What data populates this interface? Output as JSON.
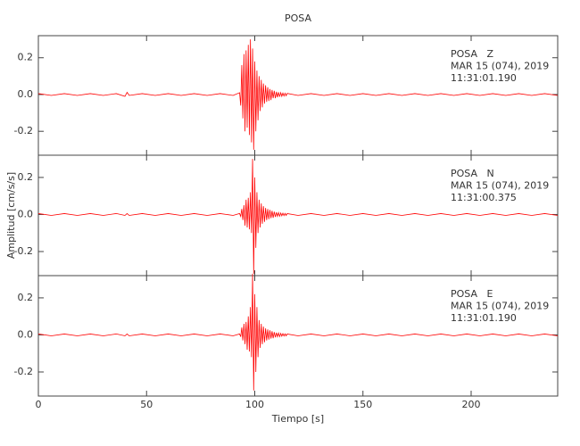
{
  "chart_data": [
    {
      "type": "line",
      "title": "POSA",
      "annotations": [
        "POSA   Z",
        "MAR 15 (074), 2019",
        "11:31:01.190"
      ],
      "xlim": [
        0,
        240
      ],
      "xticks": [
        0,
        50,
        100,
        150,
        200
      ],
      "ylim": [
        -0.33,
        0.32
      ],
      "yticks": [
        0.2,
        {
          "value": 0,
          "label": "0.0"
        },
        -0.2
      ],
      "x": [
        0,
        6,
        12,
        18,
        24,
        30,
        36,
        40,
        41,
        42,
        48,
        54,
        60,
        66,
        72,
        78,
        84,
        90,
        93,
        93.5,
        94,
        94.5,
        95,
        95.5,
        96,
        96.5,
        97,
        97.5,
        98,
        98.5,
        99,
        99.5,
        100,
        100.5,
        101,
        101.5,
        102,
        102.5,
        103,
        103.5,
        104,
        104.5,
        105,
        105.5,
        106,
        106.5,
        107,
        107.5,
        108,
        108.5,
        109,
        109.5,
        110,
        110.5,
        111,
        111.5,
        112,
        112.5,
        113,
        113.5,
        114,
        114.5,
        115,
        120,
        126,
        132,
        138,
        144,
        150,
        156,
        162,
        168,
        174,
        180,
        186,
        192,
        198,
        204,
        210,
        216,
        222,
        228,
        234,
        240
      ],
      "series": [
        {
          "color": "#ff0000",
          "values": [
            0.005,
            -0.005,
            0.005,
            -0.005,
            0.005,
            -0.005,
            0.005,
            -0.01,
            0.012,
            -0.005,
            0.005,
            -0.005,
            0.005,
            -0.005,
            0.005,
            -0.005,
            0.005,
            -0.005,
            0.01,
            -0.06,
            0.16,
            -0.13,
            0.22,
            -0.2,
            0.24,
            -0.18,
            0.27,
            -0.22,
            0.3,
            -0.26,
            0.25,
            -0.3,
            0.18,
            -0.2,
            0.13,
            -0.14,
            0.1,
            -0.09,
            0.08,
            -0.07,
            0.06,
            -0.05,
            0.05,
            -0.04,
            0.04,
            -0.035,
            0.03,
            -0.03,
            0.025,
            -0.02,
            0.02,
            -0.02,
            0.015,
            -0.015,
            0.012,
            -0.012,
            0.01,
            -0.01,
            0.008,
            -0.008,
            0.007,
            -0.007,
            0.006,
            -0.005,
            0.005,
            -0.005,
            0.005,
            -0.005,
            0.005,
            -0.005,
            0.005,
            -0.005,
            0.005,
            -0.005,
            0.005,
            -0.005,
            0.005,
            -0.005,
            0.005,
            -0.005,
            0.005,
            -0.005,
            0.005,
            -0.005
          ]
        }
      ]
    },
    {
      "type": "line",
      "ylabel": "Amplitud [cm/s/s]",
      "annotations": [
        "POSA   N",
        "MAR 15 (074), 2019",
        "11:31:00.375"
      ],
      "xlim": [
        0,
        240
      ],
      "xticks": [
        0,
        50,
        100,
        150,
        200
      ],
      "ylim": [
        -0.33,
        0.32
      ],
      "yticks": [
        0.2,
        {
          "value": 0,
          "label": "0.0"
        },
        -0.2
      ],
      "x": [
        0,
        6,
        12,
        18,
        24,
        30,
        36,
        40,
        41,
        42,
        48,
        54,
        60,
        66,
        72,
        78,
        84,
        90,
        93,
        93.5,
        94,
        94.5,
        95,
        95.5,
        96,
        96.5,
        97,
        97.5,
        98,
        98.5,
        99,
        99.5,
        100,
        100.5,
        101,
        101.5,
        102,
        102.5,
        103,
        103.5,
        104,
        104.5,
        105,
        105.5,
        106,
        106.5,
        107,
        107.5,
        108,
        108.5,
        109,
        109.5,
        110,
        110.5,
        111,
        111.5,
        112,
        112.5,
        113,
        113.5,
        114,
        114.5,
        115,
        120,
        126,
        132,
        138,
        144,
        150,
        156,
        162,
        168,
        174,
        180,
        186,
        192,
        198,
        204,
        210,
        216,
        222,
        228,
        234,
        240
      ],
      "series": [
        {
          "color": "#ff0000",
          "values": [
            0.005,
            -0.005,
            0.005,
            -0.005,
            0.005,
            -0.005,
            0.005,
            -0.005,
            0.005,
            -0.005,
            0.005,
            -0.005,
            0.005,
            -0.005,
            0.005,
            -0.005,
            0.005,
            -0.005,
            0.005,
            -0.01,
            0.03,
            -0.03,
            0.05,
            -0.06,
            0.08,
            -0.07,
            0.09,
            -0.08,
            0.12,
            -0.1,
            0.3,
            -0.32,
            0.2,
            -0.18,
            0.12,
            -0.1,
            0.08,
            -0.07,
            0.06,
            -0.05,
            0.045,
            -0.04,
            0.035,
            -0.03,
            0.03,
            -0.025,
            0.025,
            -0.02,
            0.02,
            -0.018,
            0.015,
            -0.013,
            0.012,
            -0.01,
            0.01,
            -0.009,
            0.008,
            -0.007,
            0.007,
            -0.006,
            0.006,
            -0.005,
            0.005,
            -0.005,
            0.005,
            -0.005,
            0.005,
            -0.005,
            0.005,
            -0.005,
            0.005,
            -0.005,
            0.005,
            -0.005,
            0.005,
            -0.005,
            0.005,
            -0.005,
            0.005,
            -0.005,
            0.005,
            -0.005,
            0.005,
            -0.005
          ]
        }
      ]
    },
    {
      "type": "line",
      "xlabel": "Tiempo [s]",
      "annotations": [
        "POSA   E",
        "MAR 15 (074), 2019",
        "11:31:01.190"
      ],
      "xlim": [
        0,
        240
      ],
      "xticks": [
        0,
        50,
        100,
        150,
        200
      ],
      "ylim": [
        -0.33,
        0.32
      ],
      "yticks": [
        0.2,
        {
          "value": 0,
          "label": "0.0"
        },
        -0.2
      ],
      "x": [
        0,
        6,
        12,
        18,
        24,
        30,
        36,
        40,
        41,
        42,
        48,
        54,
        60,
        66,
        72,
        78,
        84,
        90,
        93,
        93.5,
        94,
        94.5,
        95,
        95.5,
        96,
        96.5,
        97,
        97.5,
        98,
        98.5,
        99,
        99.5,
        100,
        100.5,
        101,
        101.5,
        102,
        102.5,
        103,
        103.5,
        104,
        104.5,
        105,
        105.5,
        106,
        106.5,
        107,
        107.5,
        108,
        108.5,
        109,
        109.5,
        110,
        110.5,
        111,
        111.5,
        112,
        112.5,
        113,
        113.5,
        114,
        114.5,
        115,
        120,
        126,
        132,
        138,
        144,
        150,
        156,
        162,
        168,
        174,
        180,
        186,
        192,
        198,
        204,
        210,
        216,
        222,
        228,
        234,
        240
      ],
      "series": [
        {
          "color": "#ff0000",
          "values": [
            0.005,
            -0.005,
            0.005,
            -0.005,
            0.005,
            -0.005,
            0.005,
            -0.005,
            0.005,
            -0.005,
            0.005,
            -0.005,
            0.005,
            -0.005,
            0.005,
            -0.005,
            0.005,
            -0.005,
            0.005,
            -0.01,
            0.04,
            -0.03,
            0.06,
            -0.05,
            0.07,
            -0.08,
            0.1,
            -0.09,
            0.15,
            -0.12,
            0.33,
            -0.3,
            0.22,
            -0.2,
            0.15,
            -0.12,
            0.08,
            -0.07,
            0.06,
            -0.05,
            0.045,
            -0.04,
            0.035,
            -0.03,
            0.03,
            -0.025,
            0.025,
            -0.02,
            0.02,
            -0.018,
            0.015,
            -0.013,
            0.012,
            -0.01,
            0.01,
            -0.009,
            0.008,
            -0.007,
            0.007,
            -0.006,
            0.006,
            -0.005,
            0.005,
            -0.005,
            0.005,
            -0.005,
            0.005,
            -0.005,
            0.005,
            -0.005,
            0.005,
            -0.005,
            0.005,
            -0.005,
            0.005,
            -0.005,
            0.005,
            -0.005,
            0.005,
            -0.005,
            0.005,
            -0.005,
            0.005,
            -0.005
          ]
        }
      ]
    }
  ]
}
